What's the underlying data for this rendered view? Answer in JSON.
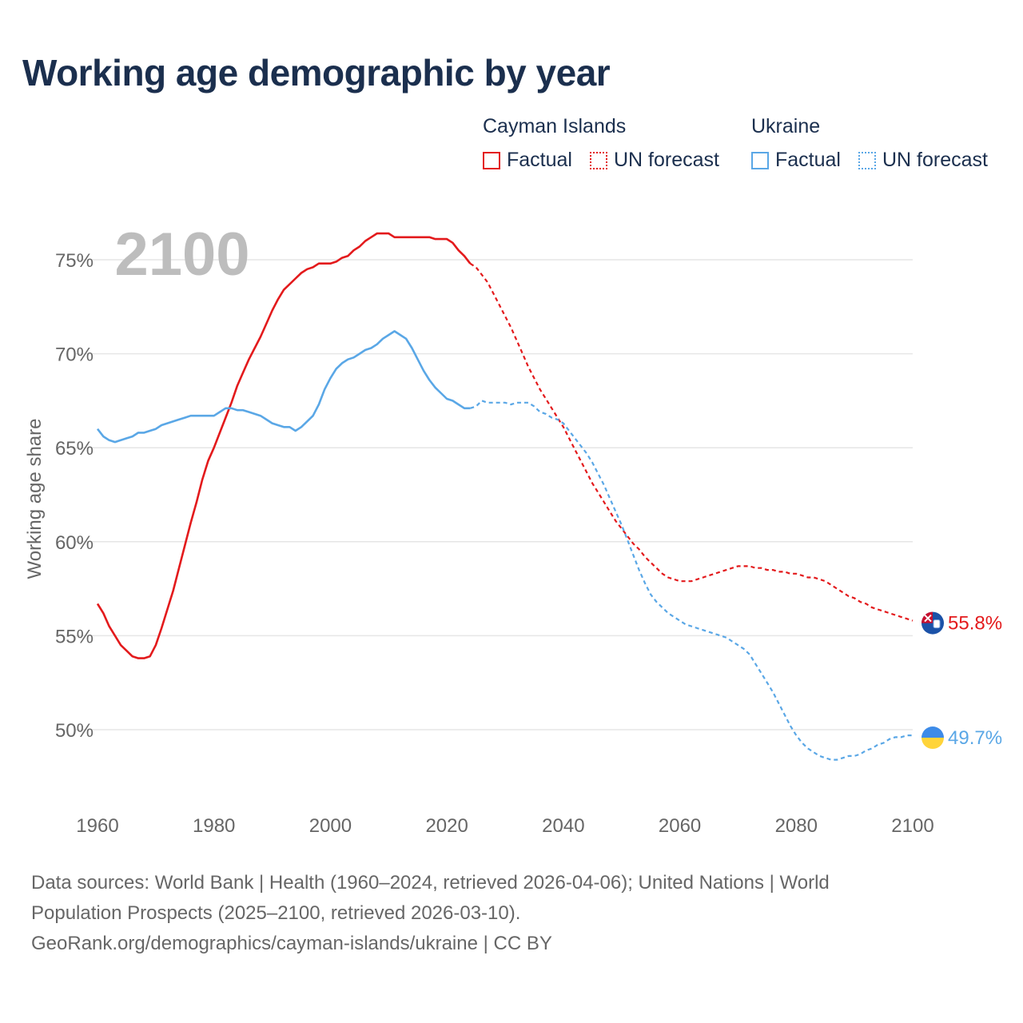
{
  "title": "Working age demographic by year",
  "legend": {
    "groups": [
      {
        "name": "Cayman Islands",
        "color": "#e31a1c",
        "items": [
          "Factual",
          "UN forecast"
        ]
      },
      {
        "name": "Ukraine",
        "color": "#5aa7e6",
        "items": [
          "Factual",
          "UN forecast"
        ]
      }
    ]
  },
  "chart_data": {
    "type": "line",
    "title": "Working age demographic by year",
    "year_watermark": "2100",
    "ylabel": "Working age share",
    "xlabel": "",
    "xlim": [
      1960,
      2100
    ],
    "ylim": [
      46.5,
      76.5
    ],
    "x_ticks": [
      1960,
      1980,
      2000,
      2020,
      2040,
      2060,
      2080,
      2100
    ],
    "y_ticks": [
      50,
      55,
      60,
      65,
      70,
      75
    ],
    "y_tick_labels": [
      "50%",
      "55%",
      "60%",
      "65%",
      "70%",
      "75%"
    ],
    "grid": true,
    "forecast_start_year": 2024,
    "series": [
      {
        "name": "Cayman Islands",
        "color": "#e31a1c",
        "end_label": "55.8%",
        "flag": "cayman-islands-flag",
        "points": [
          [
            1960,
            56.7
          ],
          [
            1961,
            56.2
          ],
          [
            1962,
            55.5
          ],
          [
            1963,
            55.0
          ],
          [
            1964,
            54.5
          ],
          [
            1965,
            54.2
          ],
          [
            1966,
            53.9
          ],
          [
            1967,
            53.8
          ],
          [
            1968,
            53.8
          ],
          [
            1969,
            53.9
          ],
          [
            1970,
            54.5
          ],
          [
            1971,
            55.4
          ],
          [
            1972,
            56.4
          ],
          [
            1973,
            57.4
          ],
          [
            1974,
            58.6
          ],
          [
            1975,
            59.8
          ],
          [
            1976,
            61.0
          ],
          [
            1977,
            62.1
          ],
          [
            1978,
            63.3
          ],
          [
            1979,
            64.3
          ],
          [
            1980,
            65.0
          ],
          [
            1981,
            65.8
          ],
          [
            1982,
            66.6
          ],
          [
            1983,
            67.4
          ],
          [
            1984,
            68.3
          ],
          [
            1985,
            69.0
          ],
          [
            1986,
            69.7
          ],
          [
            1987,
            70.3
          ],
          [
            1988,
            70.9
          ],
          [
            1989,
            71.6
          ],
          [
            1990,
            72.3
          ],
          [
            1991,
            72.9
          ],
          [
            1992,
            73.4
          ],
          [
            1993,
            73.7
          ],
          [
            1994,
            74.0
          ],
          [
            1995,
            74.3
          ],
          [
            1996,
            74.5
          ],
          [
            1997,
            74.6
          ],
          [
            1998,
            74.8
          ],
          [
            1999,
            74.8
          ],
          [
            2000,
            74.8
          ],
          [
            2001,
            74.9
          ],
          [
            2002,
            75.1
          ],
          [
            2003,
            75.2
          ],
          [
            2004,
            75.5
          ],
          [
            2005,
            75.7
          ],
          [
            2006,
            76.0
          ],
          [
            2007,
            76.2
          ],
          [
            2008,
            76.4
          ],
          [
            2009,
            76.4
          ],
          [
            2010,
            76.4
          ],
          [
            2011,
            76.2
          ],
          [
            2012,
            76.2
          ],
          [
            2013,
            76.2
          ],
          [
            2014,
            76.2
          ],
          [
            2015,
            76.2
          ],
          [
            2016,
            76.2
          ],
          [
            2017,
            76.2
          ],
          [
            2018,
            76.1
          ],
          [
            2019,
            76.1
          ],
          [
            2020,
            76.1
          ],
          [
            2021,
            75.9
          ],
          [
            2022,
            75.5
          ],
          [
            2023,
            75.2
          ],
          [
            2024,
            74.8
          ],
          [
            2025,
            74.6
          ],
          [
            2026,
            74.2
          ],
          [
            2027,
            73.8
          ],
          [
            2028,
            73.2
          ],
          [
            2029,
            72.6
          ],
          [
            2030,
            72.0
          ],
          [
            2031,
            71.4
          ],
          [
            2032,
            70.7
          ],
          [
            2033,
            70.0
          ],
          [
            2034,
            69.3
          ],
          [
            2035,
            68.7
          ],
          [
            2036,
            68.1
          ],
          [
            2037,
            67.6
          ],
          [
            2038,
            67.1
          ],
          [
            2039,
            66.6
          ],
          [
            2040,
            66.1
          ],
          [
            2041,
            65.5
          ],
          [
            2042,
            64.9
          ],
          [
            2043,
            64.3
          ],
          [
            2044,
            63.7
          ],
          [
            2045,
            63.1
          ],
          [
            2046,
            62.6
          ],
          [
            2047,
            62.1
          ],
          [
            2048,
            61.6
          ],
          [
            2049,
            61.1
          ],
          [
            2050,
            60.7
          ],
          [
            2051,
            60.3
          ],
          [
            2052,
            59.9
          ],
          [
            2053,
            59.6
          ],
          [
            2054,
            59.2
          ],
          [
            2055,
            58.9
          ],
          [
            2056,
            58.6
          ],
          [
            2057,
            58.3
          ],
          [
            2058,
            58.1
          ],
          [
            2059,
            58.0
          ],
          [
            2060,
            57.9
          ],
          [
            2061,
            57.9
          ],
          [
            2062,
            57.9
          ],
          [
            2063,
            58.0
          ],
          [
            2064,
            58.1
          ],
          [
            2065,
            58.2
          ],
          [
            2066,
            58.3
          ],
          [
            2067,
            58.4
          ],
          [
            2068,
            58.5
          ],
          [
            2069,
            58.6
          ],
          [
            2070,
            58.7
          ],
          [
            2071,
            58.7
          ],
          [
            2072,
            58.7
          ],
          [
            2073,
            58.6
          ],
          [
            2074,
            58.6
          ],
          [
            2075,
            58.5
          ],
          [
            2076,
            58.5
          ],
          [
            2077,
            58.4
          ],
          [
            2078,
            58.4
          ],
          [
            2079,
            58.3
          ],
          [
            2080,
            58.3
          ],
          [
            2081,
            58.2
          ],
          [
            2082,
            58.1
          ],
          [
            2083,
            58.1
          ],
          [
            2084,
            58.0
          ],
          [
            2085,
            57.9
          ],
          [
            2086,
            57.7
          ],
          [
            2087,
            57.5
          ],
          [
            2088,
            57.3
          ],
          [
            2089,
            57.1
          ],
          [
            2090,
            57.0
          ],
          [
            2091,
            56.8
          ],
          [
            2092,
            56.7
          ],
          [
            2093,
            56.5
          ],
          [
            2094,
            56.4
          ],
          [
            2095,
            56.3
          ],
          [
            2096,
            56.2
          ],
          [
            2097,
            56.1
          ],
          [
            2098,
            56.0
          ],
          [
            2099,
            55.9
          ],
          [
            2100,
            55.8
          ]
        ]
      },
      {
        "name": "Ukraine",
        "color": "#5aa7e6",
        "end_label": "49.7%",
        "flag": "ukraine-flag",
        "points": [
          [
            1960,
            66.0
          ],
          [
            1961,
            65.6
          ],
          [
            1962,
            65.4
          ],
          [
            1963,
            65.3
          ],
          [
            1964,
            65.4
          ],
          [
            1965,
            65.5
          ],
          [
            1966,
            65.6
          ],
          [
            1967,
            65.8
          ],
          [
            1968,
            65.8
          ],
          [
            1969,
            65.9
          ],
          [
            1970,
            66.0
          ],
          [
            1971,
            66.2
          ],
          [
            1972,
            66.3
          ],
          [
            1973,
            66.4
          ],
          [
            1974,
            66.5
          ],
          [
            1975,
            66.6
          ],
          [
            1976,
            66.7
          ],
          [
            1977,
            66.7
          ],
          [
            1978,
            66.7
          ],
          [
            1979,
            66.7
          ],
          [
            1980,
            66.7
          ],
          [
            1981,
            66.9
          ],
          [
            1982,
            67.1
          ],
          [
            1983,
            67.1
          ],
          [
            1984,
            67.0
          ],
          [
            1985,
            67.0
          ],
          [
            1986,
            66.9
          ],
          [
            1987,
            66.8
          ],
          [
            1988,
            66.7
          ],
          [
            1989,
            66.5
          ],
          [
            1990,
            66.3
          ],
          [
            1991,
            66.2
          ],
          [
            1992,
            66.1
          ],
          [
            1993,
            66.1
          ],
          [
            1994,
            65.9
          ],
          [
            1995,
            66.1
          ],
          [
            1996,
            66.4
          ],
          [
            1997,
            66.7
          ],
          [
            1998,
            67.3
          ],
          [
            1999,
            68.1
          ],
          [
            2000,
            68.7
          ],
          [
            2001,
            69.2
          ],
          [
            2002,
            69.5
          ],
          [
            2003,
            69.7
          ],
          [
            2004,
            69.8
          ],
          [
            2005,
            70.0
          ],
          [
            2006,
            70.2
          ],
          [
            2007,
            70.3
          ],
          [
            2008,
            70.5
          ],
          [
            2009,
            70.8
          ],
          [
            2010,
            71.0
          ],
          [
            2011,
            71.2
          ],
          [
            2012,
            71.0
          ],
          [
            2013,
            70.8
          ],
          [
            2014,
            70.3
          ],
          [
            2015,
            69.7
          ],
          [
            2016,
            69.1
          ],
          [
            2017,
            68.6
          ],
          [
            2018,
            68.2
          ],
          [
            2019,
            67.9
          ],
          [
            2020,
            67.6
          ],
          [
            2021,
            67.5
          ],
          [
            2022,
            67.3
          ],
          [
            2023,
            67.1
          ],
          [
            2024,
            67.1
          ],
          [
            2025,
            67.2
          ],
          [
            2026,
            67.5
          ],
          [
            2027,
            67.4
          ],
          [
            2028,
            67.4
          ],
          [
            2029,
            67.4
          ],
          [
            2030,
            67.4
          ],
          [
            2031,
            67.3
          ],
          [
            2032,
            67.4
          ],
          [
            2033,
            67.4
          ],
          [
            2034,
            67.4
          ],
          [
            2035,
            67.2
          ],
          [
            2036,
            66.9
          ],
          [
            2037,
            66.8
          ],
          [
            2038,
            66.6
          ],
          [
            2039,
            66.5
          ],
          [
            2040,
            66.3
          ],
          [
            2041,
            65.9
          ],
          [
            2042,
            65.5
          ],
          [
            2043,
            65.1
          ],
          [
            2044,
            64.7
          ],
          [
            2045,
            64.2
          ],
          [
            2046,
            63.6
          ],
          [
            2047,
            63.0
          ],
          [
            2048,
            62.3
          ],
          [
            2049,
            61.6
          ],
          [
            2050,
            60.9
          ],
          [
            2051,
            60.1
          ],
          [
            2052,
            59.3
          ],
          [
            2053,
            58.5
          ],
          [
            2054,
            57.8
          ],
          [
            2055,
            57.2
          ],
          [
            2056,
            56.8
          ],
          [
            2057,
            56.5
          ],
          [
            2058,
            56.2
          ],
          [
            2059,
            56.0
          ],
          [
            2060,
            55.8
          ],
          [
            2061,
            55.6
          ],
          [
            2062,
            55.5
          ],
          [
            2063,
            55.4
          ],
          [
            2064,
            55.3
          ],
          [
            2065,
            55.2
          ],
          [
            2066,
            55.1
          ],
          [
            2067,
            55.0
          ],
          [
            2068,
            54.9
          ],
          [
            2069,
            54.7
          ],
          [
            2070,
            54.5
          ],
          [
            2071,
            54.3
          ],
          [
            2072,
            54.0
          ],
          [
            2073,
            53.5
          ],
          [
            2074,
            53.0
          ],
          [
            2075,
            52.5
          ],
          [
            2076,
            52.0
          ],
          [
            2077,
            51.4
          ],
          [
            2078,
            50.8
          ],
          [
            2079,
            50.2
          ],
          [
            2080,
            49.7
          ],
          [
            2081,
            49.3
          ],
          [
            2082,
            49.0
          ],
          [
            2083,
            48.8
          ],
          [
            2084,
            48.6
          ],
          [
            2085,
            48.5
          ],
          [
            2086,
            48.4
          ],
          [
            2087,
            48.4
          ],
          [
            2088,
            48.5
          ],
          [
            2089,
            48.6
          ],
          [
            2090,
            48.6
          ],
          [
            2091,
            48.7
          ],
          [
            2092,
            48.9
          ],
          [
            2093,
            49.0
          ],
          [
            2094,
            49.2
          ],
          [
            2095,
            49.3
          ],
          [
            2096,
            49.5
          ],
          [
            2097,
            49.6
          ],
          [
            2098,
            49.6
          ],
          [
            2099,
            49.7
          ],
          [
            2100,
            49.7
          ]
        ]
      }
    ]
  },
  "footer": {
    "line1": "Data sources: World Bank | Health (1960–2024, retrieved 2026-04-06); United Nations | World",
    "line2": "Population Prospects (2025–2100, retrieved 2026-03-10).",
    "line3": "GeoRank.org/demographics/cayman-islands/ukraine | CC BY"
  }
}
